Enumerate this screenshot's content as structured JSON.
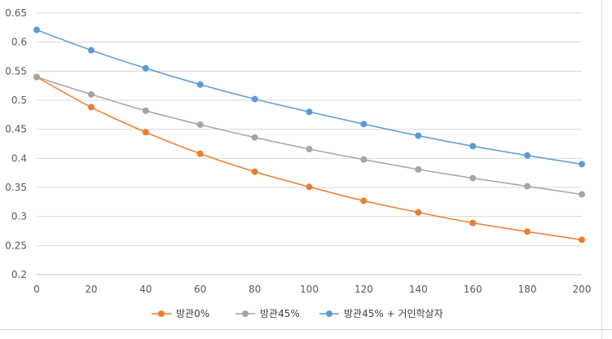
{
  "chart_data": {
    "type": "line",
    "title": "",
    "xlabel": "",
    "ylabel": "",
    "x": [
      0,
      20,
      40,
      60,
      80,
      100,
      120,
      140,
      160,
      180,
      200
    ],
    "xlim": [
      0,
      200
    ],
    "ylim": [
      0.2,
      0.65
    ],
    "x_ticks": [
      "0",
      "20",
      "40",
      "60",
      "80",
      "100",
      "120",
      "140",
      "160",
      "180",
      "200"
    ],
    "y_ticks": [
      "0.2",
      "0.25",
      "0.3",
      "0.35",
      "0.4",
      "0.45",
      "0.5",
      "0.55",
      "0.6",
      "0.65"
    ],
    "grid": "horizontal",
    "legend_position": "bottom",
    "series": [
      {
        "name": "방관0%",
        "color": "#ED7D31",
        "values": [
          0.54,
          0.488,
          0.445,
          0.408,
          0.377,
          0.351,
          0.327,
          0.307,
          0.289,
          0.274,
          0.26
        ]
      },
      {
        "name": "방관45%",
        "color": "#A5A5A5",
        "values": [
          0.54,
          0.51,
          0.482,
          0.458,
          0.436,
          0.416,
          0.398,
          0.381,
          0.366,
          0.352,
          0.338
        ]
      },
      {
        "name": "방관45% + 거인학살자",
        "color": "#5B9BD5",
        "values": [
          0.621,
          0.586,
          0.555,
          0.527,
          0.502,
          0.48,
          0.459,
          0.439,
          0.421,
          0.405,
          0.39
        ]
      }
    ]
  }
}
